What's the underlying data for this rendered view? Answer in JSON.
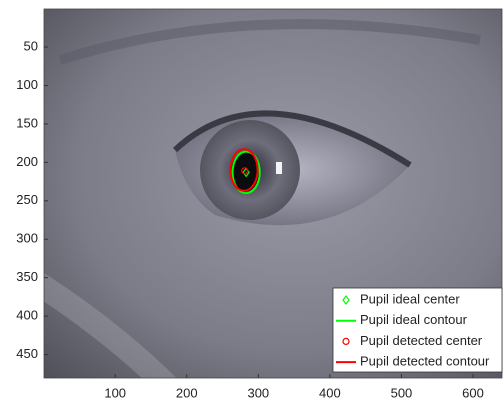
{
  "chart_data": {
    "type": "image_overlay",
    "xlim": [
      0.5,
      640.5
    ],
    "ylim": [
      0.5,
      480.5
    ],
    "y_reversed": true,
    "xticks": [
      100,
      200,
      300,
      400,
      500,
      600
    ],
    "yticks": [
      50,
      100,
      150,
      200,
      250,
      300,
      350,
      400,
      450
    ],
    "legend": "lower right",
    "series": [
      {
        "name": "Pupil ideal center",
        "color": "#00ff00",
        "marker": "diamond",
        "x": [
          283
        ],
        "y": [
          213
        ]
      },
      {
        "name": "Pupil ideal contour",
        "color": "#00ff00",
        "shape": "ellipse",
        "center": [
          283,
          213
        ],
        "radii": [
          19,
          27
        ]
      },
      {
        "name": "Pupil detected center",
        "color": "#ff0000",
        "marker": "circle",
        "x": [
          281
        ],
        "y": [
          211
        ]
      },
      {
        "name": "Pupil detected contour",
        "color": "#ff0000",
        "shape": "ellipse",
        "center": [
          280,
          210
        ],
        "radii": [
          19,
          27
        ]
      }
    ]
  }
}
